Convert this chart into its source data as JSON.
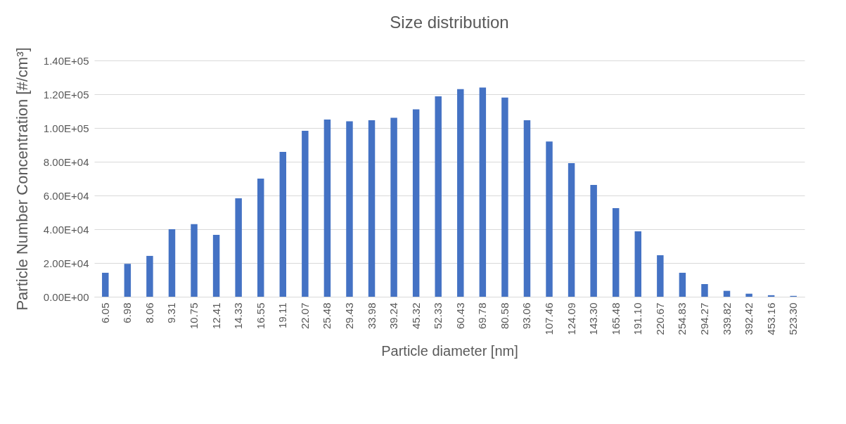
{
  "chart_data": {
    "type": "bar",
    "title": "Size distribution",
    "xlabel": "Particle diameter [nm]",
    "ylabel": "Particle Number Concentration [#/cm³]",
    "categories": [
      "6.05",
      "6.98",
      "8.06",
      "9.31",
      "10.75",
      "12.41",
      "14.33",
      "16.55",
      "19.11",
      "22.07",
      "25.48",
      "29.43",
      "33.98",
      "39.24",
      "45.32",
      "52.33",
      "60.43",
      "69.78",
      "80.58",
      "93.06",
      "107.46",
      "124.09",
      "143.30",
      "165.48",
      "191.10",
      "220.67",
      "254.83",
      "294.27",
      "339.82",
      "392.42",
      "453.16",
      "523.30"
    ],
    "values": [
      14200,
      19500,
      24200,
      40000,
      43000,
      36700,
      58300,
      70000,
      85800,
      98300,
      105000,
      104000,
      104600,
      106000,
      111000,
      118700,
      123000,
      124000,
      118000,
      104600,
      92000,
      79200,
      66300,
      52500,
      38800,
      24600,
      14200,
      7500,
      3500,
      1800,
      900,
      500
    ],
    "color": "#4472c4",
    "ylim": [
      0,
      140000
    ],
    "yticks": [
      {
        "value": 0,
        "label": "0.00E+00"
      },
      {
        "value": 20000,
        "label": "2.00E+04"
      },
      {
        "value": 40000,
        "label": "4.00E+04"
      },
      {
        "value": 60000,
        "label": "6.00E+04"
      },
      {
        "value": 80000,
        "label": "8.00E+04"
      },
      {
        "value": 100000,
        "label": "1.00E+05"
      },
      {
        "value": 120000,
        "label": "1.20E+05"
      },
      {
        "value": 140000,
        "label": "1.40E+05"
      }
    ],
    "grid": "y"
  }
}
